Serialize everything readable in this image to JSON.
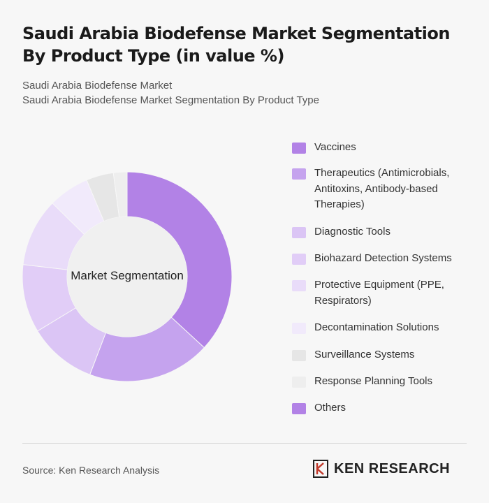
{
  "title": "Saudi Arabia Biodefense Market Segmentation By Product Type (in value %)",
  "subtitle_1": "Saudi Arabia Biodefense Market",
  "subtitle_2": "Saudi Arabia Biodefense Market Segmentation By Product Type",
  "center_label": "Market Segmentation",
  "source": "Source: Ken Research Analysis",
  "brand": "KEN RESEARCH",
  "chart_data": {
    "type": "pie",
    "donut": true,
    "legend_position": "right",
    "categories": [
      "Vaccines",
      "Therapeutics (Antimicrobials, Antitoxins, Antibody-based Therapies)",
      "Diagnostic Tools",
      "Biohazard Detection Systems",
      "Protective Equipment (PPE, Respirators)",
      "Decontamination Solutions",
      "Surveillance Systems",
      "Response Planning Tools",
      "Others"
    ],
    "values": [
      35,
      18,
      10,
      10,
      10,
      6,
      4,
      2,
      0
    ],
    "colors": [
      "#b282e6",
      "#c5a3ee",
      "#dbc5f5",
      "#e1cdf7",
      "#e9dcf9",
      "#f1eafb",
      "#e6e6e6",
      "#eeeeee",
      "#b282e6"
    ]
  }
}
